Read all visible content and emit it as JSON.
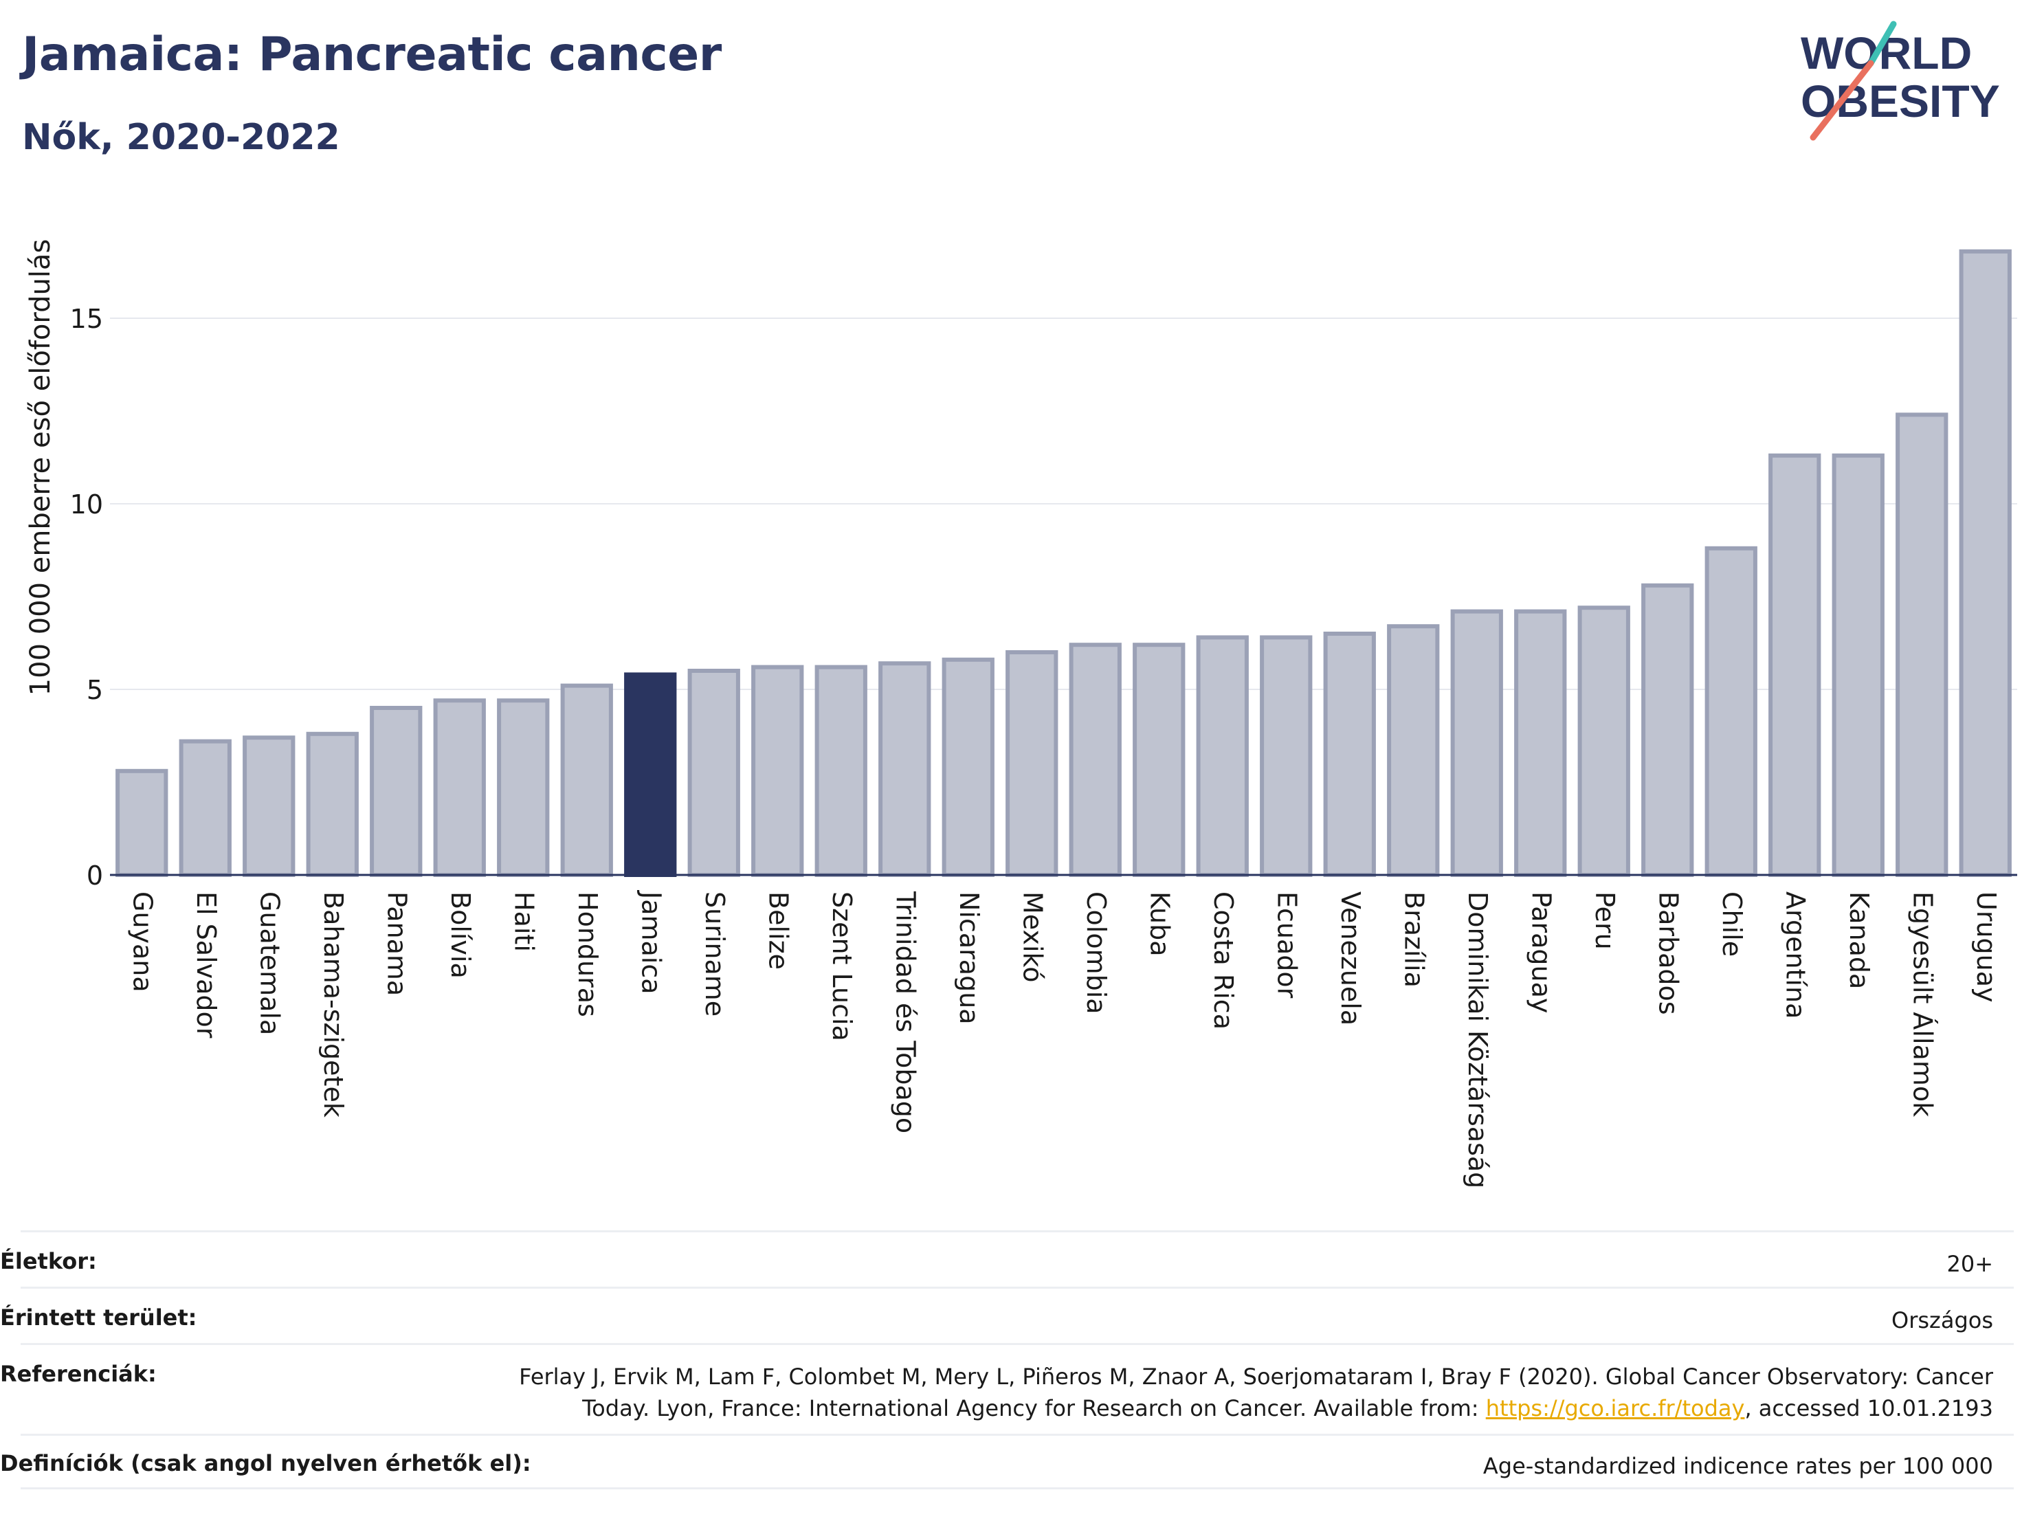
{
  "header": {
    "title": "Jamaica: Pancreatic cancer",
    "subtitle": "Nők, 2020-2022",
    "logo_text_line1": "WORLD",
    "logo_text_line2": "OBESITY"
  },
  "chart_data": {
    "type": "bar",
    "ylabel": "100 000 emberre eső előfordulás",
    "ylim": [
      0,
      17.5
    ],
    "yticks": [
      0,
      5,
      10,
      15
    ],
    "grid": true,
    "highlight": "Jamaica",
    "categories": [
      "Guyana",
      "El Salvador",
      "Guatemala",
      "Bahama-szigetek",
      "Panama",
      "Bolívia",
      "Haiti",
      "Honduras",
      "Jamaica",
      "Suriname",
      "Belize",
      "Szent Lucia",
      "Trinidad és Tobago",
      "Nicaragua",
      "Mexikó",
      "Colombia",
      "Kuba",
      "Costa Rica",
      "Ecuador",
      "Venezuela",
      "Brazília",
      "Dominikai Köztársaság",
      "Paraguay",
      "Peru",
      "Barbados",
      "Chile",
      "Argentína",
      "Kanada",
      "Egyesült Államok",
      "Uruguay"
    ],
    "values": [
      2.8,
      3.6,
      3.7,
      3.8,
      4.5,
      4.7,
      4.7,
      5.1,
      5.4,
      5.5,
      5.6,
      5.6,
      5.7,
      5.8,
      6.0,
      6.2,
      6.2,
      6.4,
      6.4,
      6.5,
      6.7,
      7.1,
      7.1,
      7.2,
      7.8,
      8.8,
      11.3,
      11.3,
      12.4,
      16.8
    ]
  },
  "colors": {
    "highlight": "#2a3560",
    "bar_fill": "#bfc3d0",
    "bar_stroke": "#9ba1b6",
    "title": "#2a3560",
    "logo_teal": "#3ebfb4",
    "logo_coral": "#e9705e"
  },
  "info": {
    "age_label": "Életkor:",
    "age_value": "20+",
    "area_label": "Érintett terület:",
    "area_value": "Országos",
    "ref_label": "Referenciák:",
    "ref_line1": "Ferlay J, Ervik M, Lam F, Colombet M, Mery L, Piñeros M, Znaor A, Soerjomataram I, Bray F (2020). Global Cancer Observatory: Cancer",
    "ref_line2_pre": "Today. Lyon, France: International Agency for Research on Cancer. Available from: ",
    "ref_link": "https://gco.iarc.fr/today",
    "ref_line2_post": ", accessed 10.01.2193",
    "def_label": "Definíciók (csak angol nyelven érhetők el):",
    "def_value": "Age-standardized indicence rates per 100 000"
  }
}
